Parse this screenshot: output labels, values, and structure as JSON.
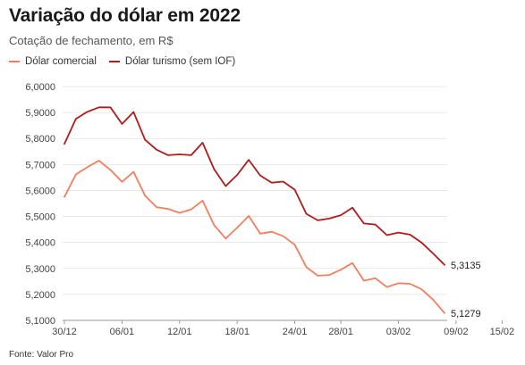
{
  "header": {
    "title": "Variação do dólar em 2022",
    "subtitle": "Cotação de fechamento, em R$"
  },
  "footer": {
    "source": "Fonte: Valor Pro"
  },
  "colors": {
    "comercial": "#f07f5f",
    "turismo": "#b01c1c",
    "grid": "#e3e3e3",
    "axis": "#999999"
  },
  "chart_data": {
    "type": "line",
    "title": "Variação do dólar em 2022",
    "subtitle": "Cotação de fechamento, em R$",
    "xlabel": "",
    "ylabel": "",
    "ylim": [
      5.1,
      6.0
    ],
    "yticks": [
      "6,0000",
      "5,9000",
      "5,8000",
      "5,7000",
      "5,6000",
      "5,5000",
      "5,4000",
      "5,3000",
      "5,2000",
      "5,1000"
    ],
    "ytick_values": [
      6.0,
      5.9,
      5.8,
      5.7,
      5.6,
      5.5,
      5.4,
      5.3,
      5.2,
      5.1
    ],
    "xticks": [
      "30/12",
      "06/01",
      "12/01",
      "18/01",
      "24/01",
      "28/01",
      "03/02",
      "09/02",
      "15/02"
    ],
    "xtick_index": [
      0,
      5,
      10,
      15,
      20,
      24,
      29,
      34,
      38
    ],
    "grid": true,
    "legend": "top-left",
    "series": [
      {
        "name": "Dólar comercial",
        "color": "#f07f5f",
        "end_label": "5,1279",
        "values": [
          5.575,
          5.662,
          5.69,
          5.715,
          5.679,
          5.633,
          5.672,
          5.58,
          5.536,
          5.529,
          5.514,
          5.527,
          5.561,
          5.467,
          5.415,
          5.457,
          5.502,
          5.434,
          5.441,
          5.424,
          5.391,
          5.305,
          5.272,
          5.275,
          5.295,
          5.321,
          5.253,
          5.262,
          5.228,
          5.243,
          5.241,
          5.22,
          5.18,
          5.128
        ]
      },
      {
        "name": "Dólar turismo (sem IOF)",
        "color": "#b01c1c",
        "end_label": "5,3135",
        "values": [
          5.779,
          5.876,
          5.903,
          5.92,
          5.92,
          5.856,
          5.902,
          5.795,
          5.757,
          5.736,
          5.739,
          5.736,
          5.784,
          5.682,
          5.617,
          5.66,
          5.718,
          5.658,
          5.63,
          5.634,
          5.603,
          5.51,
          5.485,
          5.492,
          5.505,
          5.534,
          5.473,
          5.469,
          5.428,
          5.438,
          5.43,
          5.4,
          5.358,
          5.3135
        ]
      }
    ]
  }
}
